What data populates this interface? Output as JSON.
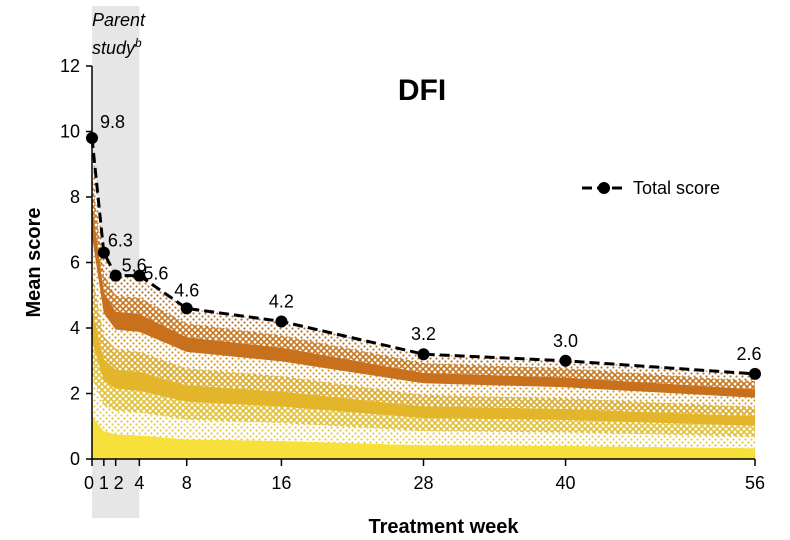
{
  "chart_data": {
    "type": "area",
    "title": "DFI",
    "xlabel": "Treatment week",
    "ylabel": "Mean score",
    "ylim": [
      0,
      12
    ],
    "xlim": [
      0,
      56
    ],
    "y_ticks": [
      0,
      2,
      4,
      6,
      8,
      10,
      12
    ],
    "x_ticks": [
      0,
      1,
      2,
      4,
      8,
      16,
      28,
      40,
      56
    ],
    "x_tick_labels": [
      "0",
      "1",
      "2",
      "4",
      "8",
      "16",
      "28",
      "40",
      "56"
    ],
    "shaded_region": {
      "label": "Parent",
      "label_line2": "study",
      "superscript": "b",
      "x_range": [
        0,
        4
      ]
    },
    "legend": {
      "position": "right",
      "entries": [
        "Total score"
      ]
    },
    "series": [
      {
        "name": "Total score",
        "type": "line",
        "x": [
          0,
          1,
          2,
          4,
          8,
          16,
          28,
          40,
          56
        ],
        "values": [
          9.8,
          6.3,
          5.6,
          5.6,
          4.6,
          4.2,
          3.2,
          3.0,
          2.6
        ],
        "labels": [
          "9.8",
          "6.3",
          "5.6",
          "5.6",
          "4.6",
          "4.2",
          "3.2",
          "3.0",
          "2.6"
        ]
      }
    ],
    "stacked_components": {
      "x": [
        0,
        1,
        2,
        4,
        8,
        16,
        28,
        40,
        56
      ],
      "layers": [
        {
          "color": "#f7e03a",
          "pattern": "solid",
          "values": [
            1.3,
            0.85,
            0.75,
            0.72,
            0.6,
            0.55,
            0.42,
            0.4,
            0.33
          ]
        },
        {
          "color": "#e6c83c",
          "pattern": "dots",
          "values": [
            1.2,
            0.8,
            0.72,
            0.7,
            0.6,
            0.55,
            0.43,
            0.41,
            0.35
          ]
        },
        {
          "color": "#e2c035",
          "pattern": "cross",
          "values": [
            1.1,
            0.75,
            0.68,
            0.66,
            0.55,
            0.5,
            0.4,
            0.38,
            0.33
          ]
        },
        {
          "color": "#e3b52a",
          "pattern": "solid",
          "values": [
            1.0,
            0.65,
            0.58,
            0.58,
            0.5,
            0.46,
            0.36,
            0.34,
            0.3
          ]
        },
        {
          "color": "#dcaa2a",
          "pattern": "cross",
          "values": [
            1.1,
            0.7,
            0.62,
            0.62,
            0.52,
            0.47,
            0.35,
            0.33,
            0.28
          ]
        },
        {
          "color": "#d79a22",
          "pattern": "dots",
          "values": [
            1.1,
            0.7,
            0.6,
            0.6,
            0.5,
            0.45,
            0.35,
            0.33,
            0.28
          ]
        },
        {
          "color": "#c8701c",
          "pattern": "solid",
          "values": [
            1.0,
            0.65,
            0.55,
            0.55,
            0.45,
            0.42,
            0.32,
            0.3,
            0.26
          ]
        },
        {
          "color": "#c8761e",
          "pattern": "cross",
          "values": [
            0.9,
            0.55,
            0.48,
            0.5,
            0.42,
            0.38,
            0.3,
            0.28,
            0.25
          ]
        },
        {
          "color": "#b8742c",
          "pattern": "dots",
          "values": [
            1.0,
            0.65,
            0.62,
            0.67,
            0.46,
            0.42,
            0.27,
            0.23,
            0.22
          ]
        }
      ]
    }
  }
}
